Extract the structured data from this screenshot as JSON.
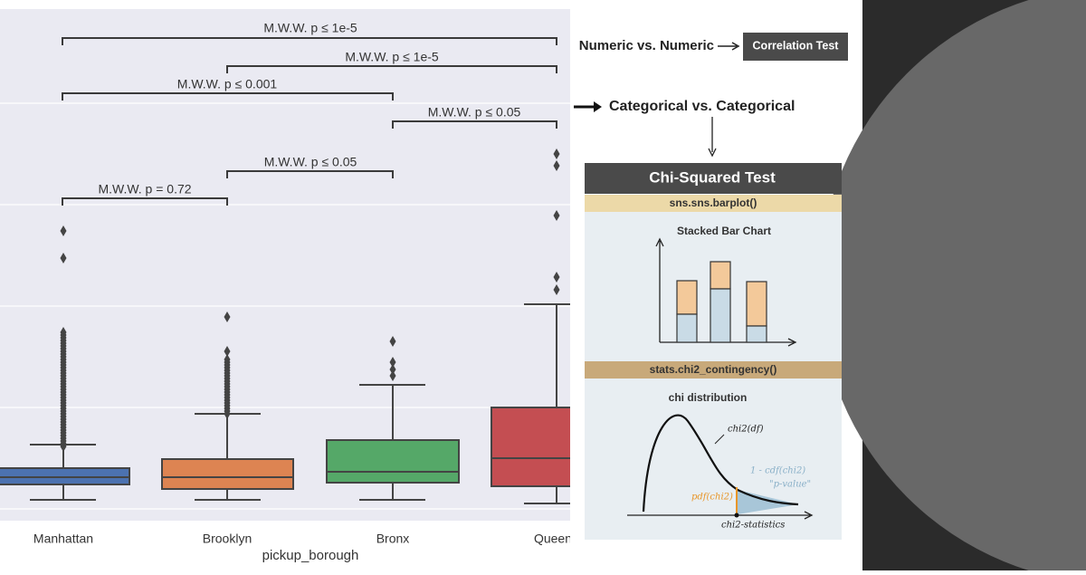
{
  "boxplot": {
    "categories": [
      "Manhattan",
      "Brooklyn",
      "Bronx",
      "Queen"
    ],
    "x_label": "pickup_borough",
    "annotations": [
      "M.W.W. p ≤ 1e-5",
      "M.W.W. p ≤ 1e-5",
      "M.W.W. p ≤ 0.001",
      "M.W.W. p ≤ 0.05",
      "M.W.W. p ≤ 0.05",
      "M.W.W. p = 0.72"
    ]
  },
  "diagram": {
    "numeric": "Numeric vs. Numeric",
    "correlation": "Correlation Test",
    "categorical": "Categorical vs. Categorical",
    "card": {
      "title": "Chi-Squared Test",
      "step1": "sns.sns.barplot()",
      "sketch1": "Stacked Bar Chart",
      "step2": "stats.chi2_contingency()",
      "sketch2": "chi distribution",
      "notes": [
        "chi2(df)",
        "1 - cdf(chi2)",
        "\"p-value\"",
        "pdf(chi2)",
        "chi2-statistics"
      ]
    }
  }
}
